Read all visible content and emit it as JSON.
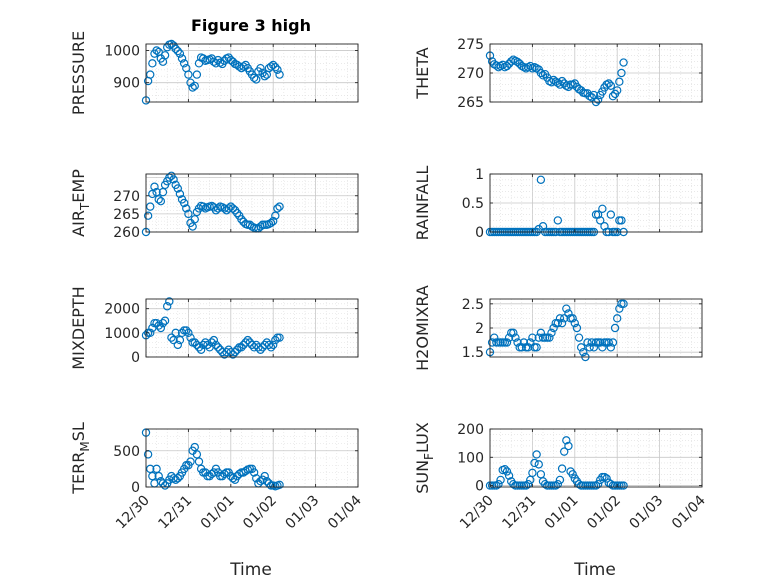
{
  "figure_title": "Figure 3 high",
  "colors": {
    "marker": "#0072BD",
    "axis": "#262626",
    "grid": "#d0d0d0"
  },
  "chart_data": [
    {
      "type": "scatter",
      "name": "pressure",
      "ylabel": "PRESSURE",
      "ylim": [
        840,
        1020
      ],
      "yticks": [
        900,
        1000
      ],
      "xticks": [
        "12/30",
        "12/31",
        "01/01",
        "01/02",
        "01/03",
        "01/04"
      ],
      "xlim_days": [
        0,
        5
      ],
      "show_xticklabels": false,
      "x_days": [
        0.0,
        0.05,
        0.1,
        0.15,
        0.2,
        0.25,
        0.3,
        0.35,
        0.4,
        0.45,
        0.5,
        0.55,
        0.6,
        0.65,
        0.7,
        0.75,
        0.8,
        0.85,
        0.9,
        0.95,
        1.0,
        1.05,
        1.1,
        1.15,
        1.2,
        1.25,
        1.3,
        1.35,
        1.4,
        1.45,
        1.5,
        1.55,
        1.6,
        1.65,
        1.7,
        1.75,
        1.8,
        1.85,
        1.9,
        1.95,
        2.0,
        2.05,
        2.1,
        2.15,
        2.2,
        2.25,
        2.3,
        2.35,
        2.4,
        2.45,
        2.5,
        2.55,
        2.6,
        2.65,
        2.7,
        2.75,
        2.8,
        2.85,
        2.9,
        2.95,
        3.0,
        3.05,
        3.1,
        3.15
      ],
      "values": [
        845,
        905,
        925,
        960,
        990,
        1000,
        995,
        975,
        965,
        985,
        1010,
        1018,
        1020,
        1015,
        1005,
        998,
        990,
        975,
        960,
        945,
        925,
        900,
        885,
        890,
        925,
        960,
        978,
        975,
        968,
        970,
        972,
        975,
        965,
        960,
        970,
        962,
        958,
        968,
        975,
        978,
        970,
        965,
        958,
        955,
        950,
        945,
        950,
        955,
        945,
        935,
        925,
        915,
        910,
        935,
        945,
        930,
        920,
        925,
        945,
        950,
        955,
        948,
        940,
        925
      ]
    },
    {
      "type": "scatter",
      "name": "theta",
      "ylabel": "THETA",
      "ylim": [
        265,
        275
      ],
      "yticks": [
        265,
        270,
        275
      ],
      "xticks": [
        "12/30",
        "12/31",
        "01/01",
        "01/02",
        "01/03",
        "01/04"
      ],
      "xlim_days": [
        0,
        5
      ],
      "show_xticklabels": false,
      "x_days": [
        0.0,
        0.05,
        0.1,
        0.15,
        0.2,
        0.25,
        0.3,
        0.35,
        0.4,
        0.45,
        0.5,
        0.55,
        0.6,
        0.65,
        0.7,
        0.75,
        0.8,
        0.85,
        0.9,
        0.95,
        1.0,
        1.05,
        1.1,
        1.15,
        1.2,
        1.25,
        1.3,
        1.35,
        1.4,
        1.45,
        1.5,
        1.55,
        1.6,
        1.65,
        1.7,
        1.75,
        1.8,
        1.85,
        1.9,
        1.95,
        2.0,
        2.05,
        2.1,
        2.15,
        2.2,
        2.25,
        2.3,
        2.35,
        2.4,
        2.45,
        2.5,
        2.55,
        2.6,
        2.65,
        2.7,
        2.75,
        2.8,
        2.85,
        2.9,
        2.95,
        3.0,
        3.05,
        3.1,
        3.15
      ],
      "values": [
        273,
        272,
        271.5,
        271.3,
        271,
        271.2,
        271.4,
        271,
        271.2,
        271.6,
        272,
        272.3,
        272.1,
        271.9,
        271.6,
        271.2,
        271,
        270.8,
        271,
        271.2,
        270.8,
        271,
        270.8,
        270.6,
        270,
        269.6,
        269.8,
        269.2,
        268.6,
        268.4,
        268.8,
        268.5,
        268.3,
        268,
        268.6,
        268.2,
        267.8,
        267.6,
        268,
        268,
        268.2,
        267.6,
        267.2,
        267,
        266.6,
        266.5,
        266.5,
        266,
        265.8,
        266.2,
        265,
        265.4,
        266.2,
        266.8,
        267.5,
        268,
        268.2,
        267.8,
        266,
        266.4,
        267,
        268.5,
        270,
        271.8
      ]
    },
    {
      "type": "scatter",
      "name": "air_temp",
      "ylabel": "AIR_TEMP",
      "ylim": [
        260,
        276
      ],
      "yticks": [
        260,
        265,
        270
      ],
      "xticks": [
        "12/30",
        "12/31",
        "01/01",
        "01/02",
        "01/03",
        "01/04"
      ],
      "xlim_days": [
        0,
        5
      ],
      "show_xticklabels": false,
      "x_days": [
        0.0,
        0.05,
        0.1,
        0.15,
        0.2,
        0.25,
        0.3,
        0.35,
        0.4,
        0.45,
        0.5,
        0.55,
        0.6,
        0.65,
        0.7,
        0.75,
        0.8,
        0.85,
        0.9,
        0.95,
        1.0,
        1.05,
        1.1,
        1.15,
        1.2,
        1.25,
        1.3,
        1.35,
        1.4,
        1.45,
        1.5,
        1.55,
        1.6,
        1.65,
        1.7,
        1.75,
        1.8,
        1.85,
        1.9,
        1.95,
        2.0,
        2.05,
        2.1,
        2.15,
        2.2,
        2.25,
        2.3,
        2.35,
        2.4,
        2.45,
        2.5,
        2.55,
        2.6,
        2.65,
        2.7,
        2.75,
        2.8,
        2.85,
        2.9,
        2.95,
        3.0,
        3.05,
        3.1,
        3.15
      ],
      "values": [
        260,
        264.5,
        267,
        270.5,
        272.5,
        271,
        269,
        268.5,
        271,
        273,
        274,
        275,
        275.5,
        274.5,
        273,
        272,
        270.5,
        269,
        268,
        266.5,
        265,
        262.5,
        261.5,
        263.5,
        265.5,
        266.5,
        267.2,
        267,
        266.5,
        266.8,
        267,
        267.2,
        266.8,
        266,
        266.5,
        267,
        266.8,
        266.5,
        266,
        266.5,
        267,
        266.5,
        266,
        265.2,
        264.5,
        263.5,
        262.8,
        262.2,
        262,
        262,
        261.5,
        261.2,
        261,
        261,
        261.5,
        262,
        262,
        262,
        262.2,
        262.5,
        263,
        264.5,
        266.5,
        267
      ]
    },
    {
      "type": "scatter",
      "name": "rainfall",
      "ylabel": "RAINFALL",
      "ylim": [
        0,
        1
      ],
      "yticks": [
        0,
        0.5,
        1
      ],
      "xticks": [
        "12/30",
        "12/31",
        "01/01",
        "01/02",
        "01/03",
        "01/04"
      ],
      "xlim_days": [
        0,
        5
      ],
      "show_xticklabels": false,
      "x_days": [
        0.0,
        0.05,
        0.1,
        0.15,
        0.2,
        0.25,
        0.3,
        0.35,
        0.4,
        0.45,
        0.5,
        0.55,
        0.6,
        0.65,
        0.7,
        0.75,
        0.8,
        0.85,
        0.9,
        0.95,
        1.0,
        1.05,
        1.1,
        1.15,
        1.2,
        1.25,
        1.3,
        1.35,
        1.4,
        1.45,
        1.5,
        1.55,
        1.6,
        1.65,
        1.7,
        1.75,
        1.8,
        1.85,
        1.9,
        1.95,
        2.0,
        2.05,
        2.1,
        2.15,
        2.2,
        2.25,
        2.3,
        2.35,
        2.4,
        2.45,
        2.5,
        2.55,
        2.6,
        2.65,
        2.7,
        2.75,
        2.8,
        2.85,
        2.9,
        2.95,
        3.0,
        3.05,
        3.1,
        3.15
      ],
      "values": [
        0,
        0,
        0,
        0,
        0,
        0,
        0,
        0,
        0,
        0,
        0,
        0,
        0,
        0,
        0,
        0,
        0,
        0,
        0,
        0,
        0,
        0,
        0,
        0.05,
        0.9,
        0.1,
        0,
        0,
        0,
        0,
        0,
        0,
        0.2,
        0,
        0,
        0,
        0,
        0,
        0,
        0,
        0,
        0,
        0,
        0,
        0,
        0,
        0,
        0,
        0,
        0,
        0.3,
        0.3,
        0.2,
        0.4,
        0.1,
        0,
        0,
        0.3,
        0,
        0,
        0,
        0.2,
        0.2,
        0
      ]
    },
    {
      "type": "scatter",
      "name": "mixdepth",
      "ylabel": "MIXDEPTH",
      "ylim": [
        0,
        2400
      ],
      "yticks": [
        0,
        1000,
        2000
      ],
      "xticks": [
        "12/30",
        "12/31",
        "01/01",
        "01/02",
        "01/03",
        "01/04"
      ],
      "xlim_days": [
        0,
        5
      ],
      "show_xticklabels": false,
      "x_days": [
        0.0,
        0.05,
        0.1,
        0.15,
        0.2,
        0.25,
        0.3,
        0.35,
        0.4,
        0.45,
        0.5,
        0.55,
        0.6,
        0.65,
        0.7,
        0.75,
        0.8,
        0.85,
        0.9,
        0.95,
        1.0,
        1.05,
        1.1,
        1.15,
        1.2,
        1.25,
        1.3,
        1.35,
        1.4,
        1.45,
        1.5,
        1.55,
        1.6,
        1.65,
        1.7,
        1.75,
        1.8,
        1.85,
        1.9,
        1.95,
        2.0,
        2.05,
        2.1,
        2.15,
        2.2,
        2.25,
        2.3,
        2.35,
        2.4,
        2.45,
        2.5,
        2.55,
        2.6,
        2.65,
        2.7,
        2.75,
        2.8,
        2.85,
        2.9,
        2.95,
        3.0,
        3.05,
        3.1,
        3.15
      ],
      "values": [
        900,
        1000,
        1000,
        1200,
        1400,
        1400,
        1300,
        1200,
        1400,
        1500,
        2100,
        2300,
        800,
        700,
        1000,
        500,
        700,
        1000,
        1100,
        1100,
        1000,
        800,
        600,
        600,
        500,
        400,
        300,
        500,
        600,
        500,
        400,
        600,
        700,
        500,
        400,
        300,
        200,
        100,
        200,
        300,
        200,
        100,
        200,
        300,
        400,
        400,
        500,
        600,
        700,
        600,
        500,
        400,
        500,
        400,
        300,
        400,
        500,
        600,
        500,
        400,
        500,
        700,
        800,
        800
      ]
    },
    {
      "type": "scatter",
      "name": "h2omixra",
      "ylabel": "H2OMIXRA",
      "ylim": [
        1.4,
        2.6
      ],
      "yticks": [
        1.5,
        2,
        2.5
      ],
      "xticks": [
        "12/30",
        "12/31",
        "01/01",
        "01/02",
        "01/03",
        "01/04"
      ],
      "xlim_days": [
        0,
        5
      ],
      "show_xticklabels": false,
      "x_days": [
        0.0,
        0.05,
        0.1,
        0.15,
        0.2,
        0.25,
        0.3,
        0.35,
        0.4,
        0.45,
        0.5,
        0.55,
        0.6,
        0.65,
        0.7,
        0.75,
        0.8,
        0.85,
        0.9,
        0.95,
        1.0,
        1.05,
        1.1,
        1.15,
        1.2,
        1.25,
        1.3,
        1.35,
        1.4,
        1.45,
        1.5,
        1.55,
        1.6,
        1.65,
        1.7,
        1.75,
        1.8,
        1.85,
        1.9,
        1.95,
        2.0,
        2.05,
        2.1,
        2.15,
        2.2,
        2.25,
        2.3,
        2.35,
        2.4,
        2.45,
        2.5,
        2.55,
        2.6,
        2.65,
        2.7,
        2.75,
        2.8,
        2.85,
        2.9,
        2.95,
        3.0,
        3.05,
        3.1,
        3.15
      ],
      "values": [
        1.5,
        1.7,
        1.8,
        1.7,
        1.7,
        1.7,
        1.7,
        1.7,
        1.7,
        1.8,
        1.9,
        1.9,
        1.8,
        1.7,
        1.6,
        1.6,
        1.7,
        1.6,
        1.6,
        1.7,
        1.8,
        1.6,
        1.6,
        1.8,
        1.9,
        1.8,
        1.8,
        1.8,
        1.8,
        1.9,
        2.0,
        2.1,
        2.1,
        2.2,
        2.1,
        2.2,
        2.4,
        2.3,
        2.2,
        2.2,
        2.1,
        2.0,
        1.8,
        1.6,
        1.5,
        1.4,
        1.7,
        1.6,
        1.7,
        1.6,
        1.7,
        1.7,
        1.7,
        1.6,
        1.7,
        1.7,
        1.7,
        1.6,
        1.7,
        2.0,
        2.2,
        2.4,
        2.5,
        2.5
      ]
    },
    {
      "type": "scatter",
      "name": "terr_msl",
      "ylabel": "TERR_MSL",
      "ylim": [
        0,
        800
      ],
      "yticks": [
        0,
        500
      ],
      "xticks": [
        "12/30",
        "12/31",
        "01/01",
        "01/02",
        "01/03",
        "01/04"
      ],
      "xlim_days": [
        0,
        5
      ],
      "show_xticklabels": true,
      "x_days": [
        0.0,
        0.05,
        0.1,
        0.15,
        0.2,
        0.25,
        0.3,
        0.35,
        0.4,
        0.45,
        0.5,
        0.55,
        0.6,
        0.65,
        0.7,
        0.75,
        0.8,
        0.85,
        0.9,
        0.95,
        1.0,
        1.05,
        1.1,
        1.15,
        1.2,
        1.25,
        1.3,
        1.35,
        1.4,
        1.45,
        1.5,
        1.55,
        1.6,
        1.65,
        1.7,
        1.75,
        1.8,
        1.85,
        1.9,
        1.95,
        2.0,
        2.05,
        2.1,
        2.15,
        2.2,
        2.25,
        2.3,
        2.35,
        2.4,
        2.45,
        2.5,
        2.55,
        2.6,
        2.65,
        2.7,
        2.75,
        2.8,
        2.85,
        2.9,
        2.95,
        3.0,
        3.05,
        3.1,
        3.15
      ],
      "values": [
        750,
        450,
        250,
        150,
        50,
        250,
        150,
        80,
        50,
        20,
        50,
        100,
        150,
        120,
        100,
        120,
        150,
        200,
        250,
        300,
        300,
        350,
        500,
        550,
        450,
        350,
        250,
        200,
        200,
        150,
        150,
        180,
        200,
        250,
        200,
        150,
        150,
        180,
        200,
        200,
        150,
        120,
        100,
        150,
        180,
        200,
        200,
        220,
        240,
        250,
        250,
        200,
        120,
        50,
        80,
        100,
        150,
        80,
        50,
        20,
        20,
        10,
        20,
        30
      ]
    },
    {
      "type": "scatter",
      "name": "sun_flux",
      "ylabel": "SUN_FLUX",
      "ylim": [
        -5,
        200
      ],
      "yticks": [
        0,
        100,
        200
      ],
      "xticks": [
        "12/30",
        "12/31",
        "01/01",
        "01/02",
        "01/03",
        "01/04"
      ],
      "xlim_days": [
        0,
        5
      ],
      "show_xticklabels": true,
      "x_days": [
        0.0,
        0.05,
        0.1,
        0.15,
        0.2,
        0.25,
        0.3,
        0.35,
        0.4,
        0.45,
        0.5,
        0.55,
        0.6,
        0.65,
        0.7,
        0.75,
        0.8,
        0.85,
        0.9,
        0.95,
        1.0,
        1.05,
        1.1,
        1.15,
        1.2,
        1.25,
        1.3,
        1.35,
        1.4,
        1.45,
        1.5,
        1.55,
        1.6,
        1.65,
        1.7,
        1.75,
        1.8,
        1.85,
        1.9,
        1.95,
        2.0,
        2.05,
        2.1,
        2.15,
        2.2,
        2.25,
        2.3,
        2.35,
        2.4,
        2.45,
        2.5,
        2.55,
        2.6,
        2.65,
        2.7,
        2.75,
        2.8,
        2.85,
        2.9,
        2.95,
        3.0,
        3.05,
        3.1,
        3.15
      ],
      "values": [
        0,
        0,
        0,
        0,
        5,
        20,
        55,
        58,
        50,
        35,
        15,
        5,
        0,
        0,
        0,
        0,
        0,
        0,
        5,
        20,
        45,
        80,
        110,
        75,
        40,
        15,
        5,
        0,
        0,
        0,
        0,
        0,
        5,
        20,
        60,
        120,
        160,
        140,
        50,
        40,
        25,
        15,
        5,
        0,
        0,
        0,
        0,
        0,
        0,
        0,
        0,
        5,
        20,
        30,
        30,
        25,
        10,
        5,
        0,
        0,
        0,
        0,
        0,
        0
      ]
    }
  ],
  "xlabel": "Time",
  "ylabels_display": [
    {
      "pre": "PRESSURE",
      "sub": "",
      "post": ""
    },
    {
      "pre": "THETA",
      "sub": "",
      "post": ""
    },
    {
      "pre": "AIR",
      "sub": "T",
      "post": "EMP"
    },
    {
      "pre": "RAINFALL",
      "sub": "",
      "post": ""
    },
    {
      "pre": "MIXDEPTH",
      "sub": "",
      "post": ""
    },
    {
      "pre": "H2OMIXRA",
      "sub": "",
      "post": ""
    },
    {
      "pre": "TERR",
      "sub": "M",
      "post": "SL"
    },
    {
      "pre": "SUN",
      "sub": "F",
      "post": "LUX"
    }
  ]
}
